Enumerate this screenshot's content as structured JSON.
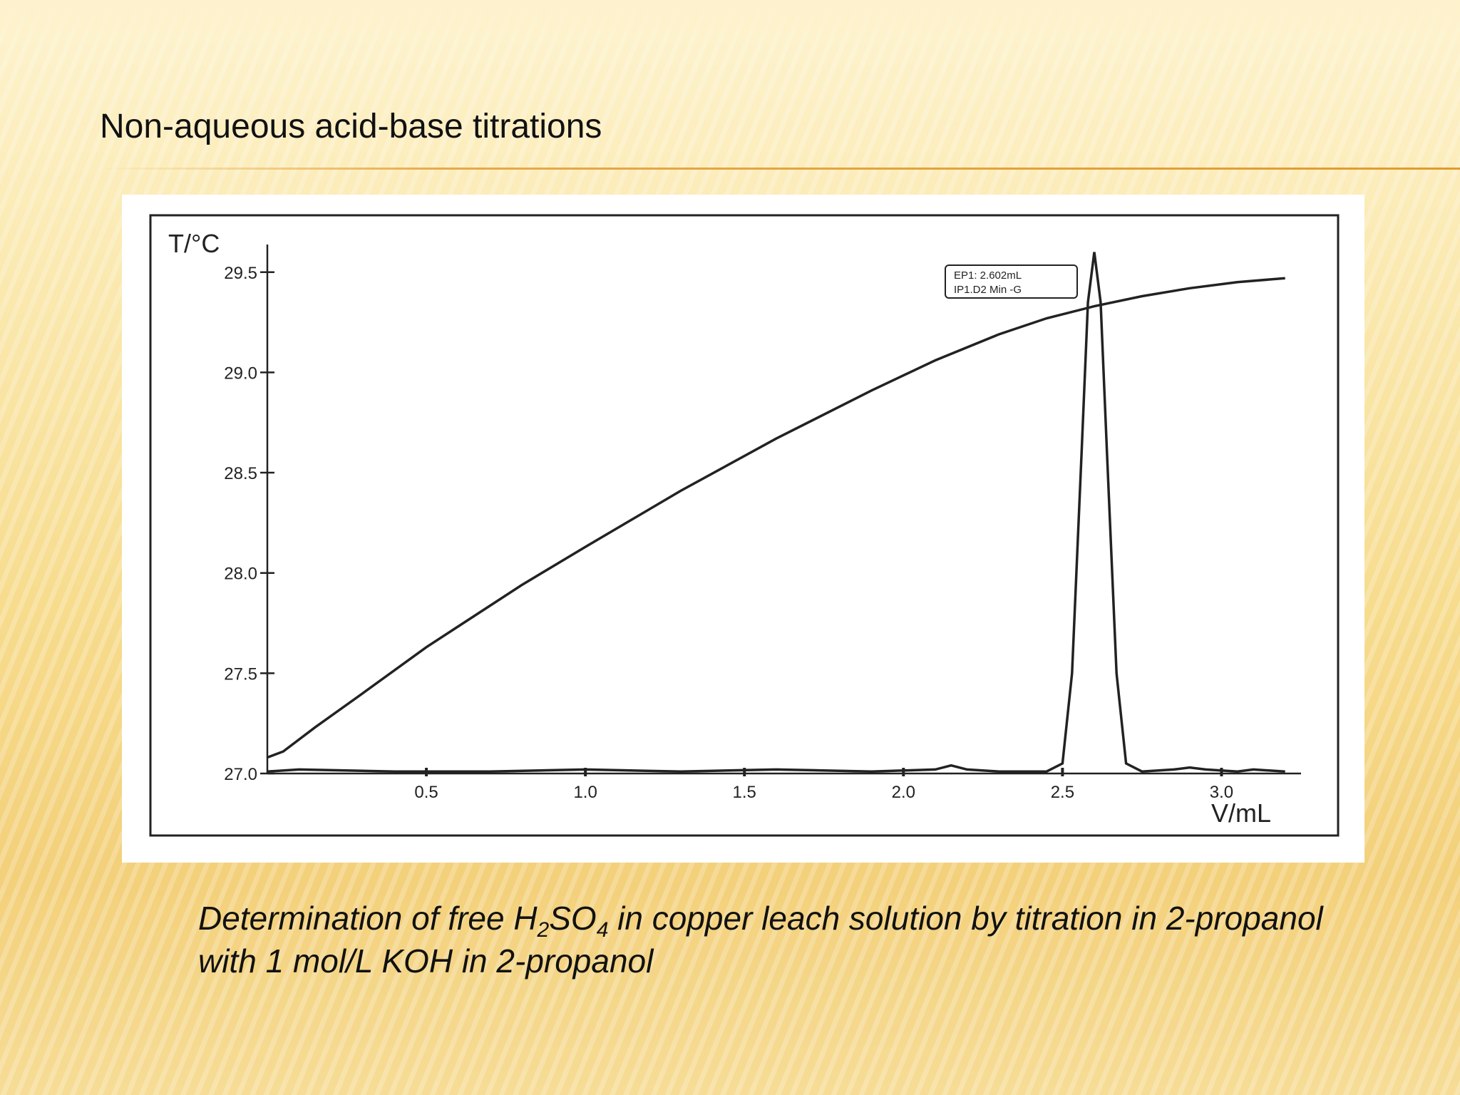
{
  "slide": {
    "title": "Non-aqueous acid-base titrations",
    "caption": {
      "part1": "Determination of free H",
      "sub1": "2",
      "part2": "SO",
      "sub2": "4",
      "part3": " in copper leach solution by titration in 2-propanol with 1 mol/L KOH in 2-propanol"
    }
  },
  "chart_data": {
    "type": "line",
    "xlabel": "V/mL",
    "ylabel": "T/°C",
    "xlim": [
      0,
      3.25
    ],
    "ylim": [
      27.0,
      29.62
    ],
    "x_ticks": [
      0.5,
      1.0,
      1.5,
      2.0,
      2.5,
      3.0
    ],
    "x_tick_labels": [
      "0.5",
      "1.0",
      "1.5",
      "2.0",
      "2.5",
      "3.0"
    ],
    "y_ticks": [
      27.0,
      27.5,
      28.0,
      28.5,
      29.0,
      29.5
    ],
    "y_tick_labels": [
      "27.0",
      "27.5",
      "28.0",
      "28.5",
      "29.0",
      "29.5"
    ],
    "grid": false,
    "annotation": {
      "line1": "EP1: 2.602mL",
      "line2": "IP1.D2 Min -G",
      "at_x": 2.6
    },
    "series": [
      {
        "values_description_free": true,
        "x": [
          0.0,
          0.05,
          0.15,
          0.3,
          0.5,
          0.8,
          1.0,
          1.3,
          1.6,
          1.9,
          2.1,
          2.3,
          2.45,
          2.6,
          2.75,
          2.9,
          3.05,
          3.2
        ],
        "y": [
          27.08,
          27.11,
          27.23,
          27.4,
          27.63,
          27.94,
          28.13,
          28.41,
          28.67,
          28.91,
          29.06,
          29.19,
          29.27,
          29.33,
          29.38,
          29.42,
          29.45,
          29.47
        ]
      },
      {
        "x": [
          0.0,
          0.1,
          0.4,
          0.7,
          1.0,
          1.3,
          1.6,
          1.9,
          2.1,
          2.15,
          2.2,
          2.3,
          2.45,
          2.5,
          2.53,
          2.56,
          2.58,
          2.6,
          2.62,
          2.64,
          2.67,
          2.7,
          2.75,
          2.85,
          2.9,
          2.95,
          3.05,
          3.1,
          3.2
        ],
        "y": [
          27.01,
          27.02,
          27.01,
          27.01,
          27.02,
          27.01,
          27.02,
          27.01,
          27.02,
          27.04,
          27.02,
          27.01,
          27.01,
          27.05,
          27.5,
          28.6,
          29.35,
          29.6,
          29.35,
          28.6,
          27.5,
          27.05,
          27.01,
          27.02,
          27.03,
          27.02,
          27.01,
          27.02,
          27.01
        ]
      }
    ]
  }
}
